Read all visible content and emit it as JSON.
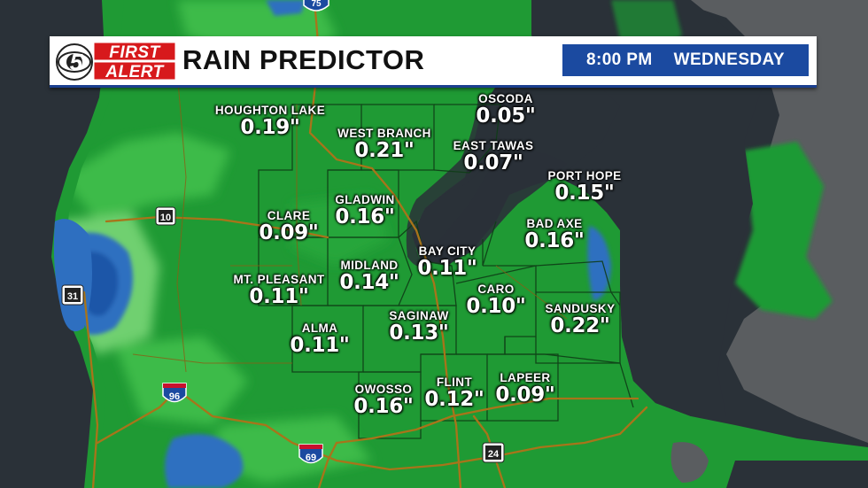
{
  "brand": {
    "logo_top": "FIRST",
    "logo_bottom": "ALERT",
    "logo_channel": "5"
  },
  "header": {
    "title": "RAIN PREDICTOR",
    "time": "8:00 PM",
    "day": "WEDNESDAY"
  },
  "highways": {
    "i75": "75",
    "us10": "10",
    "us31": "31",
    "i96": "96",
    "i69": "69",
    "us24": "24"
  },
  "colors": {
    "land_green": "#1f9a34",
    "light_green": "#3dbb48",
    "pale_green": "#6fd070",
    "rain_blue": "#2e6fc0",
    "deep_blue": "#1a56a8",
    "water": "#2a3138",
    "land_gray": "#5a5d60",
    "banner_blue": "#1b4aa0",
    "logo_red": "#d7191c"
  },
  "locations": [
    {
      "name": "HOUGHTON LAKE",
      "value": "0.19\""
    },
    {
      "name": "WEST BRANCH",
      "value": "0.21\""
    },
    {
      "name": "OSCODA",
      "value": "0.05\""
    },
    {
      "name": "EAST TAWAS",
      "value": "0.07\""
    },
    {
      "name": "PORT HOPE",
      "value": "0.15\""
    },
    {
      "name": "GLADWIN",
      "value": "0.16\""
    },
    {
      "name": "CLARE",
      "value": "0.09\""
    },
    {
      "name": "BAD AXE",
      "value": "0.16\""
    },
    {
      "name": "BAY CITY",
      "value": "0.11\""
    },
    {
      "name": "MIDLAND",
      "value": "0.14\""
    },
    {
      "name": "MT. PLEASANT",
      "value": "0.11\""
    },
    {
      "name": "CARO",
      "value": "0.10\""
    },
    {
      "name": "SANDUSKY",
      "value": "0.22\""
    },
    {
      "name": "SAGINAW",
      "value": "0.13\""
    },
    {
      "name": "ALMA",
      "value": "0.11\""
    },
    {
      "name": "OWOSSO",
      "value": "0.16\""
    },
    {
      "name": "FLINT",
      "value": "0.12\""
    },
    {
      "name": "LAPEER",
      "value": "0.09\""
    }
  ]
}
